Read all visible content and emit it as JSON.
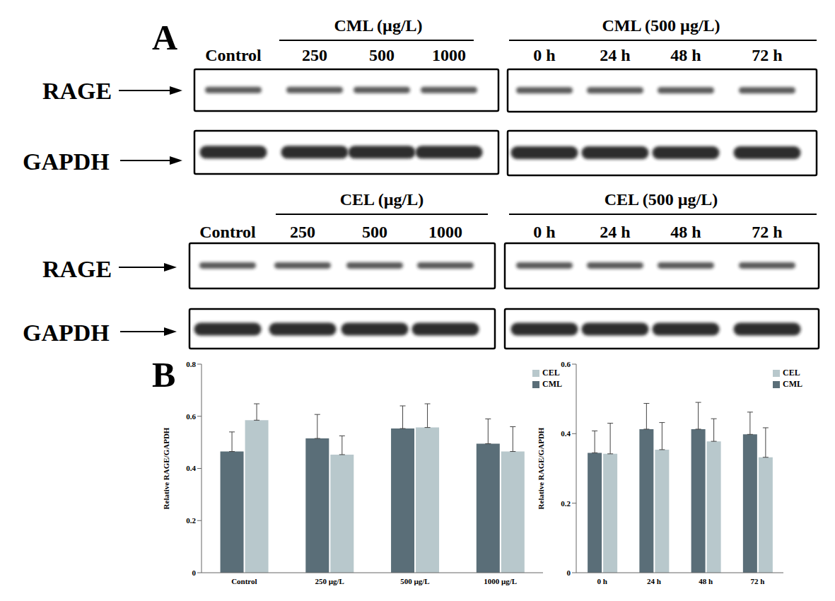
{
  "panel_a": {
    "label": "A",
    "rows": [
      "RAGE",
      "GAPDH"
    ],
    "blots": [
      {
        "header": "CML (µg/L)",
        "lanes": [
          "Control",
          "250",
          "500",
          "1000"
        ]
      },
      {
        "header": "CML (500 µg/L)",
        "lanes": [
          "0 h",
          "24 h",
          "48 h",
          "72 h"
        ]
      },
      {
        "header": "CEL (µg/L)",
        "lanes": [
          "Control",
          "250",
          "500",
          "1000"
        ]
      },
      {
        "header": "CEL (500 µg/L)",
        "lanes": [
          "0 h",
          "24 h",
          "48 h",
          "72 h"
        ]
      }
    ]
  },
  "panel_b_label": "B",
  "chart_data": [
    {
      "type": "bar",
      "y_label": "Relative RAGE/GAPDH",
      "categories": [
        "Control",
        "250 µg/L",
        "500 µg/L",
        "1000 µg/L"
      ],
      "series": [
        {
          "name": "CML",
          "color": "#5a6e78",
          "values": [
            0.465,
            0.515,
            0.553,
            0.495
          ],
          "errors": [
            0.075,
            0.092,
            0.087,
            0.095
          ]
        },
        {
          "name": "CEL",
          "color": "#b8c8cc",
          "values": [
            0.585,
            0.453,
            0.557,
            0.465
          ],
          "errors": [
            0.063,
            0.072,
            0.091,
            0.095
          ]
        }
      ],
      "ylim": [
        0,
        0.8
      ],
      "yticks": [
        0,
        0.2,
        0.4,
        0.6,
        0.8
      ],
      "legend": "top-right",
      "grid": false
    },
    {
      "type": "bar",
      "y_label": "Relative RAGE/GAPDH",
      "categories": [
        "0 h",
        "24 h",
        "48 h",
        "72 h"
      ],
      "series": [
        {
          "name": "CML",
          "color": "#5a6e78",
          "values": [
            0.345,
            0.413,
            0.413,
            0.398
          ],
          "errors": [
            0.063,
            0.074,
            0.077,
            0.064
          ]
        },
        {
          "name": "CEL",
          "color": "#b8c8cc",
          "values": [
            0.342,
            0.354,
            0.378,
            0.332
          ],
          "errors": [
            0.088,
            0.078,
            0.065,
            0.085
          ]
        }
      ],
      "ylim": [
        0,
        0.6
      ],
      "yticks": [
        0,
        0.2,
        0.4,
        0.6
      ],
      "legend": "top-right",
      "grid": false
    }
  ]
}
